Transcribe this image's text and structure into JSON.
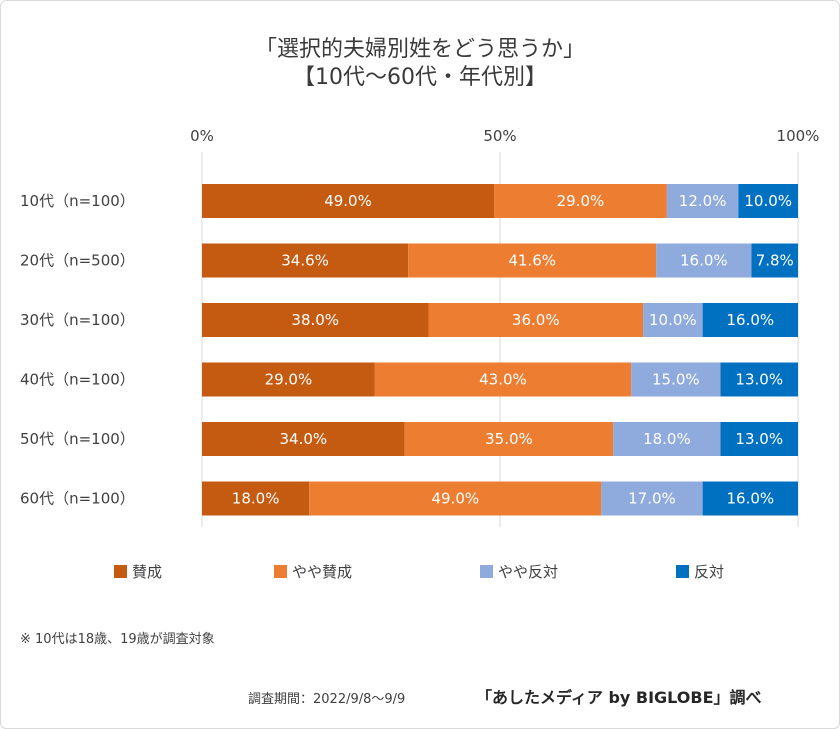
{
  "title": {
    "line1": "「選択的夫婦別姓をどう思うか」",
    "line2": "【10代～60代・年代別】"
  },
  "footnote": "※ 10代は18歳、19歳が調査対象",
  "period": "調査期間：2022/9/8～9/9",
  "source": "「あしたメディア by BIGLOBE」調べ",
  "chart_data": {
    "type": "bar",
    "orientation": "horizontal",
    "stacked": true,
    "categories": [
      "10代（n=100）",
      "20代（n=500）",
      "30代（n=100）",
      "40代（n=100）",
      "50代（n=100）",
      "60代（n=100）"
    ],
    "series": [
      {
        "name": "賛成",
        "color": "#c55a11",
        "values": [
          49.0,
          34.6,
          38.0,
          29.0,
          34.0,
          18.0
        ],
        "labels": [
          "49.0%",
          "34.6%",
          "38.0%",
          "29.0%",
          "34.0%",
          "18.0%"
        ]
      },
      {
        "name": "やや賛成",
        "color": "#ed7d31",
        "values": [
          29.0,
          41.6,
          36.0,
          43.0,
          35.0,
          49.0
        ],
        "labels": [
          "29.0%",
          "41.6%",
          "36.0%",
          "43.0%",
          "35.0%",
          "49.0%"
        ]
      },
      {
        "name": "やや反対",
        "color": "#8faadc",
        "values": [
          12.0,
          16.0,
          10.0,
          15.0,
          18.0,
          17.0
        ],
        "labels": [
          "12.0%",
          "16.0%",
          "10.0%",
          "15.0%",
          "18.0%",
          "17.0%"
        ]
      },
      {
        "name": "反対",
        "color": "#0070c0",
        "values": [
          10.0,
          7.8,
          16.0,
          13.0,
          13.0,
          16.0
        ],
        "labels": [
          "10.0%",
          "7.8%",
          "16.0%",
          "13.0%",
          "13.0%",
          "16.0%"
        ]
      }
    ],
    "xlim": [
      0,
      100
    ],
    "xticks": [
      0,
      50,
      100
    ],
    "xtick_labels": [
      "0%",
      "50%",
      "100%"
    ],
    "x_axis_position": "top",
    "legend_position": "bottom",
    "grid": false
  }
}
